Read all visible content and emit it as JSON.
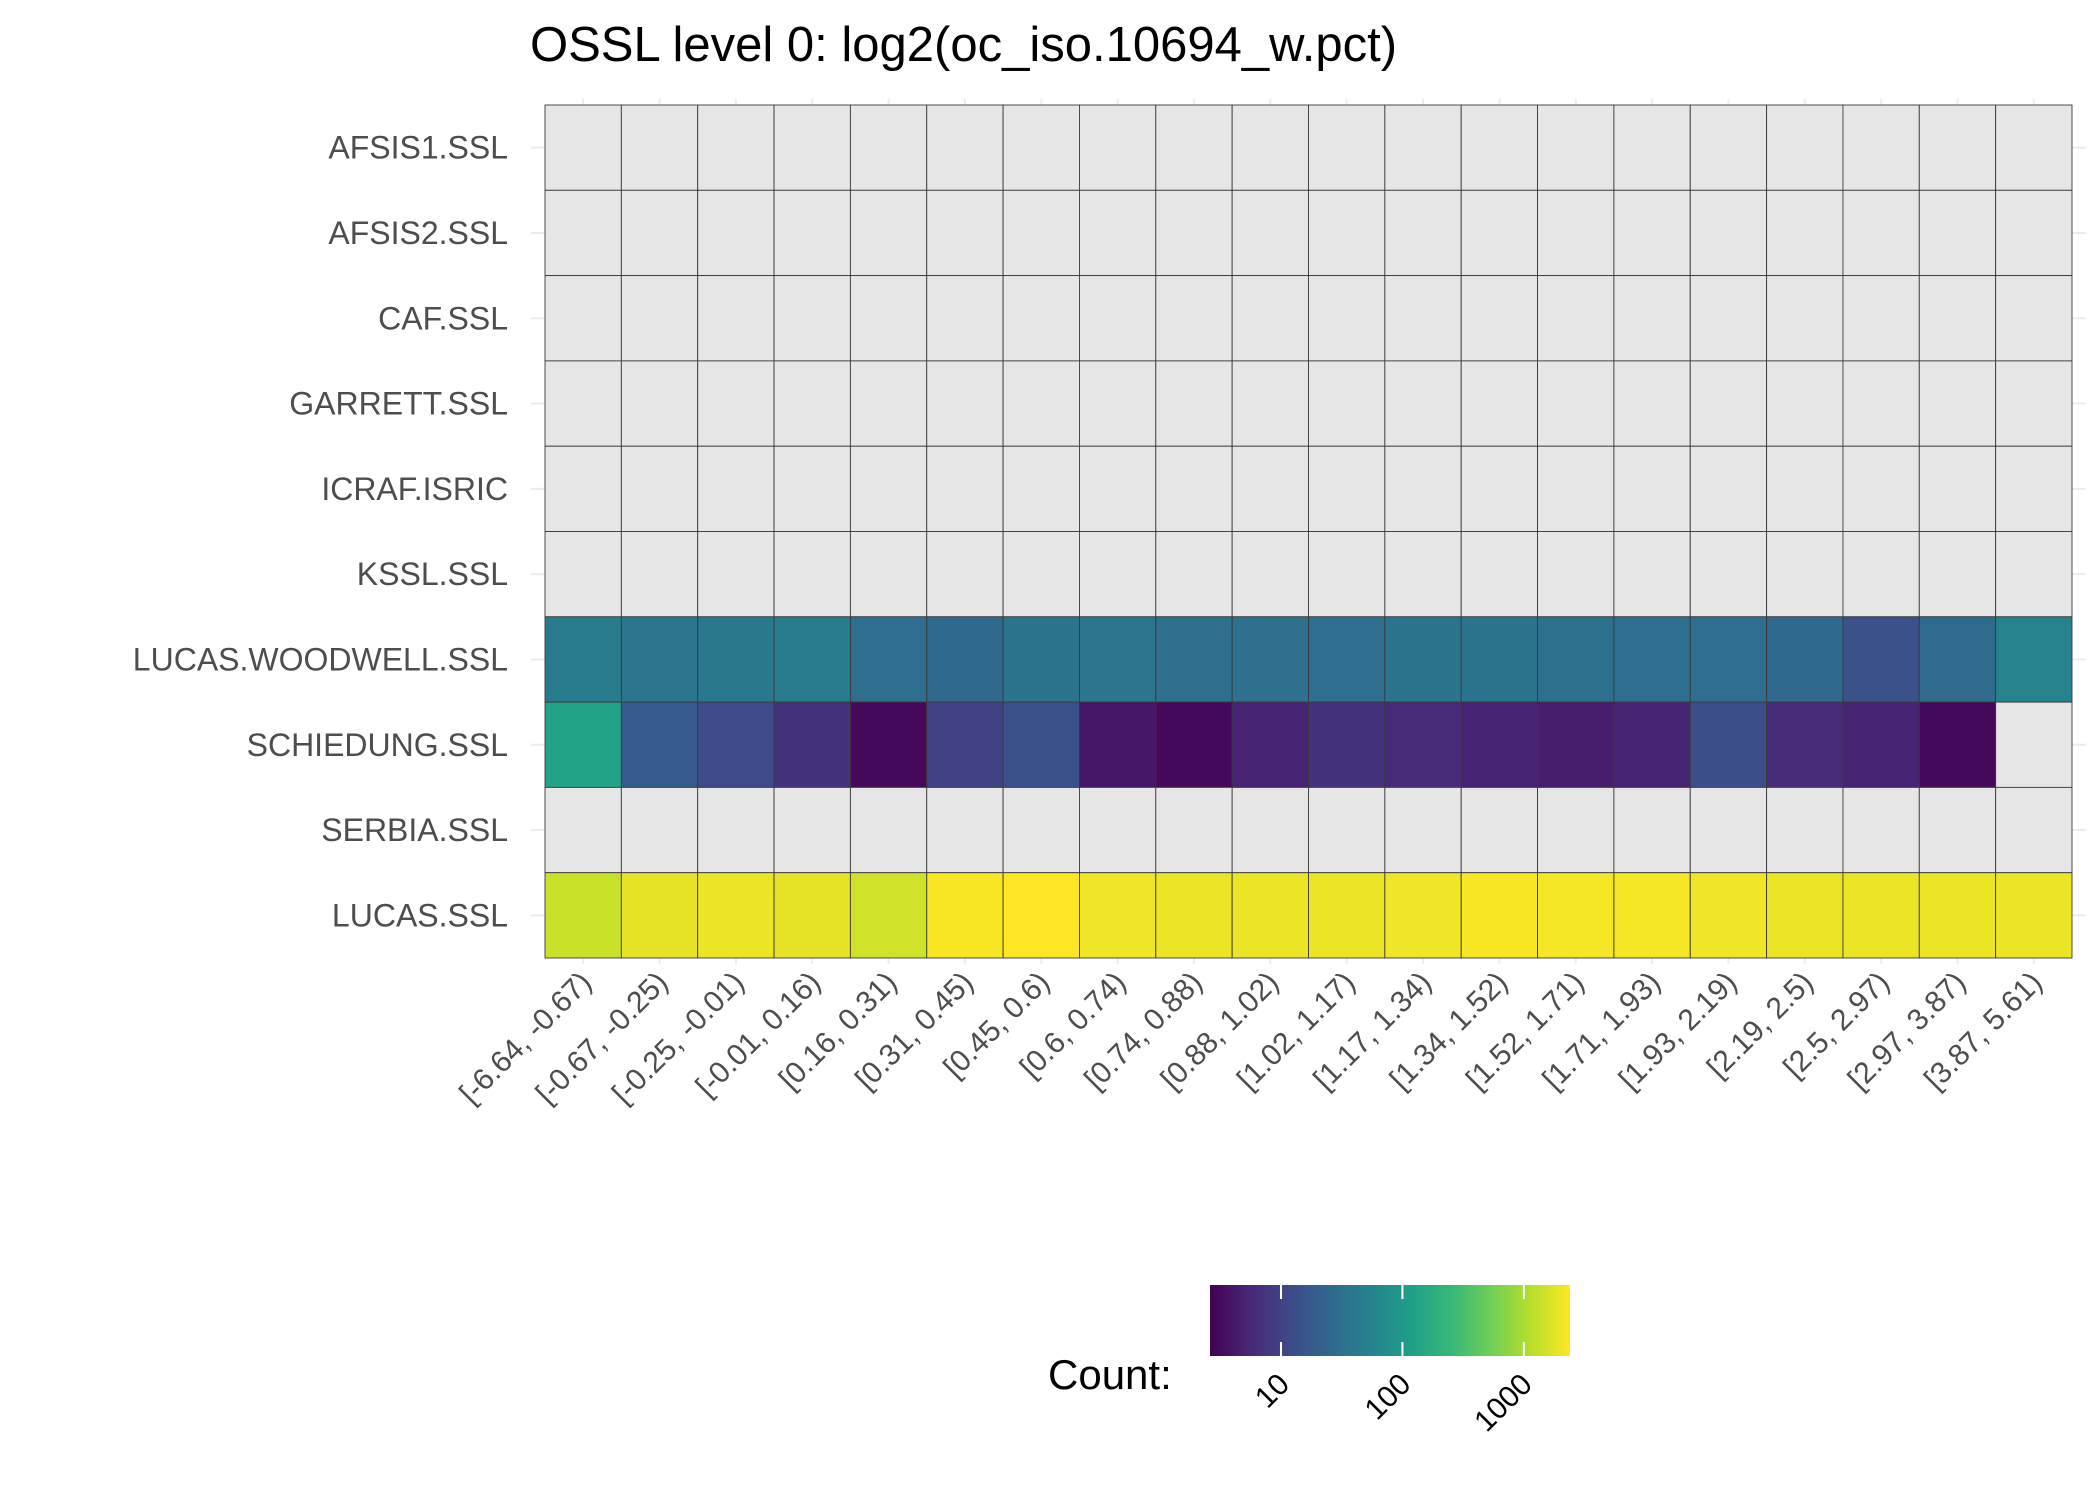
{
  "chart_data": {
    "type": "heatmap",
    "title": "OSSL level 0: log2(oc_iso.10694_w.pct)",
    "xlabel": "",
    "ylabel": "",
    "x_categories": [
      "[-6.64, -0.67)",
      "[-0.67, -0.25)",
      "[-0.25, -0.01)",
      "[-0.01, 0.16)",
      "[0.16, 0.31)",
      "[0.31, 0.45)",
      "[0.45, 0.6)",
      "[0.6, 0.74)",
      "[0.74, 0.88)",
      "[0.88, 1.02)",
      "[1.02, 1.17)",
      "[1.17, 1.34)",
      "[1.34, 1.52)",
      "[1.52, 1.71)",
      "[1.71, 1.93)",
      "[1.93, 2.19)",
      "[2.19, 2.5)",
      "[2.5, 2.97)",
      "[2.97, 3.87)",
      "[3.87, 5.61)"
    ],
    "y_categories": [
      "AFSIS1.SSL",
      "AFSIS2.SSL",
      "CAF.SSL",
      "GARRETT.SSL",
      "ICRAF.ISRIC",
      "KSSL.SSL",
      "LUCAS.WOODWELL.SSL",
      "SCHIEDUNG.SSL",
      "SERBIA.SSL",
      "LUCAS.SSL"
    ],
    "values": [
      [
        null,
        null,
        null,
        null,
        null,
        null,
        null,
        null,
        null,
        null,
        null,
        null,
        null,
        null,
        null,
        null,
        null,
        null,
        null,
        null
      ],
      [
        null,
        null,
        null,
        null,
        null,
        null,
        null,
        null,
        null,
        null,
        null,
        null,
        null,
        null,
        null,
        null,
        null,
        null,
        null,
        null
      ],
      [
        null,
        null,
        null,
        null,
        null,
        null,
        null,
        null,
        null,
        null,
        null,
        null,
        null,
        null,
        null,
        null,
        null,
        null,
        null,
        null
      ],
      [
        null,
        null,
        null,
        null,
        null,
        null,
        null,
        null,
        null,
        null,
        null,
        null,
        null,
        null,
        null,
        null,
        null,
        null,
        null,
        null
      ],
      [
        null,
        null,
        null,
        null,
        null,
        null,
        null,
        null,
        null,
        null,
        null,
        null,
        null,
        null,
        null,
        null,
        null,
        null,
        null,
        null
      ],
      [
        null,
        null,
        null,
        null,
        null,
        null,
        null,
        null,
        null,
        null,
        null,
        null,
        null,
        null,
        null,
        null,
        null,
        null,
        null,
        null
      ],
      [
        45,
        38,
        40,
        45,
        30,
        25,
        35,
        38,
        32,
        32,
        30,
        35,
        35,
        33,
        30,
        30,
        25,
        14,
        28,
        55
      ],
      [
        130,
        18,
        12,
        7,
        3,
        10,
        14,
        4,
        3,
        5,
        7,
        6,
        5,
        4.5,
        5,
        13,
        6,
        5,
        3,
        null
      ],
      [
        null,
        null,
        null,
        null,
        null,
        null,
        null,
        null,
        null,
        null,
        null,
        null,
        null,
        null,
        null,
        null,
        null,
        null,
        null,
        null
      ],
      [
        1400,
        1900,
        2000,
        1900,
        1500,
        2300,
        2500,
        2100,
        2000,
        2000,
        2000,
        2100,
        2300,
        2200,
        2200,
        2100,
        2000,
        2000,
        2000,
        2000
      ]
    ],
    "na_color": "#e6e6e6",
    "color_scale": "viridis (log10)",
    "legend": {
      "title": "Count:",
      "position": "bottom",
      "range": [
        2.6,
        2400
      ],
      "ticks": [
        10,
        100,
        1000
      ],
      "tick_labels": [
        "10",
        "100",
        "1000"
      ]
    }
  }
}
